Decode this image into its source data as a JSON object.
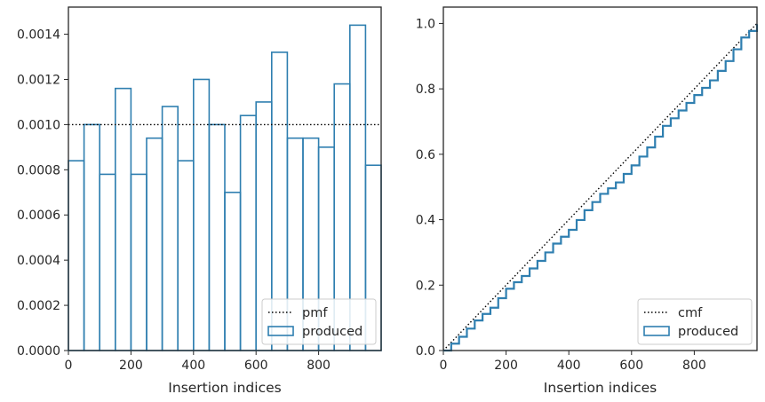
{
  "chart_data": [
    {
      "type": "histogram",
      "xlabel": "Insertion indices",
      "ylabel": "",
      "xlim": [
        0,
        1000
      ],
      "ylim": [
        0,
        0.00152
      ],
      "xticks": [
        0,
        200,
        400,
        600,
        800
      ],
      "xtick_labels": [
        "0",
        "200",
        "400",
        "600",
        "800"
      ],
      "yticks": [
        0,
        0.0002,
        0.0004,
        0.0006,
        0.0008,
        0.001,
        0.0012,
        0.0014
      ],
      "ytick_labels": [
        "0.0000",
        "0.0002",
        "0.0004",
        "0.0006",
        "0.0008",
        "0.0010",
        "0.0012",
        "0.0014"
      ],
      "grid": false,
      "legend_position": "lower-right",
      "reference": {
        "name": "pmf",
        "style": "dotted",
        "color": "#000000",
        "value": 0.001
      },
      "series": [
        {
          "name": "produced",
          "color": "#2f7fb0",
          "bin_edges": [
            0,
            50,
            100,
            150,
            200,
            250,
            300,
            350,
            400,
            450,
            500,
            550,
            600,
            650,
            700,
            750,
            800,
            850,
            900,
            950,
            1000
          ],
          "values": [
            0.00084,
            0.001,
            0.00078,
            0.00116,
            0.00078,
            0.00094,
            0.00108,
            0.00084,
            0.0012,
            0.001,
            0.0007,
            0.00104,
            0.0011,
            0.00132,
            0.00094,
            0.00094,
            0.0009,
            0.00118,
            0.00144,
            0.00082
          ]
        }
      ]
    },
    {
      "type": "line",
      "xlabel": "Insertion indices",
      "ylabel": "",
      "xlim": [
        0,
        1000
      ],
      "ylim": [
        0,
        1.05
      ],
      "xticks": [
        0,
        200,
        400,
        600,
        800
      ],
      "xtick_labels": [
        "0",
        "200",
        "400",
        "600",
        "800"
      ],
      "yticks": [
        0,
        0.2,
        0.4,
        0.6,
        0.8,
        1.0
      ],
      "ytick_labels": [
        "0.0",
        "0.2",
        "0.4",
        "0.6",
        "0.8",
        "1.0"
      ],
      "grid": false,
      "legend_position": "lower-right",
      "reference": {
        "name": "cmf",
        "style": "dotted",
        "color": "#000000",
        "x": [
          0,
          1000
        ],
        "y": [
          0,
          1.0
        ]
      },
      "series": [
        {
          "name": "produced",
          "color": "#2f7fb0",
          "x": [
            0,
            25,
            50,
            75,
            100,
            125,
            150,
            175,
            200,
            225,
            250,
            275,
            300,
            325,
            350,
            375,
            400,
            425,
            450,
            475,
            500,
            525,
            550,
            575,
            600,
            625,
            650,
            675,
            700,
            725,
            750,
            775,
            800,
            825,
            850,
            875,
            900,
            925,
            950,
            975,
            1000
          ],
          "y": [
            0,
            0.021,
            0.042,
            0.067,
            0.092,
            0.112,
            0.131,
            0.16,
            0.189,
            0.209,
            0.228,
            0.251,
            0.274,
            0.3,
            0.327,
            0.348,
            0.369,
            0.399,
            0.429,
            0.454,
            0.479,
            0.496,
            0.514,
            0.54,
            0.566,
            0.593,
            0.621,
            0.654,
            0.687,
            0.71,
            0.734,
            0.757,
            0.781,
            0.803,
            0.826,
            0.855,
            0.885,
            0.921,
            0.957,
            0.977,
            0.997
          ]
        }
      ]
    }
  ]
}
